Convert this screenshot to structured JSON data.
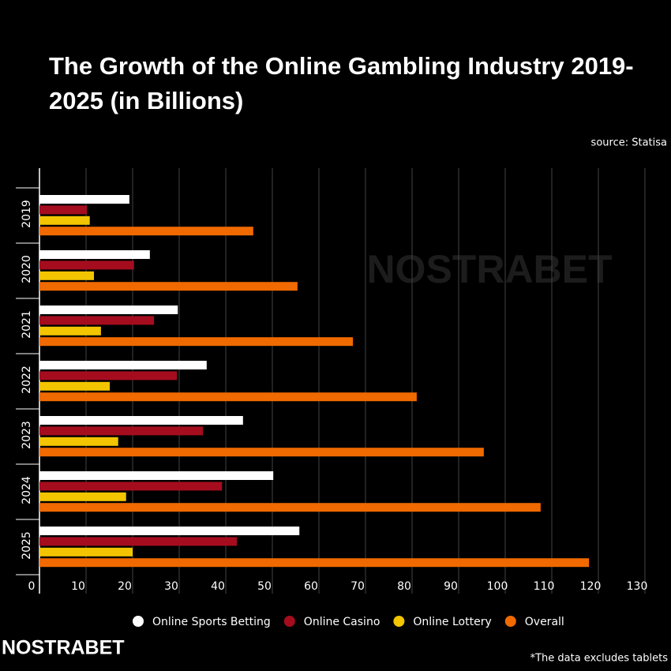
{
  "chart_data": {
    "type": "bar",
    "orientation": "horizontal",
    "title": "The Growth of the Online Gambling Industry 2019-2025 (in Billions)",
    "source": "source: Statisa",
    "footnote": "*The data excludes tablets",
    "logo": "NOSTRABET",
    "watermark": "NOSTRABET",
    "categories": [
      "2019",
      "2020",
      "2021",
      "2022",
      "2023",
      "2024",
      "2025"
    ],
    "series": [
      {
        "name": "Online Sports Betting",
        "color": "#ffffff",
        "values": [
          19.3,
          23.7,
          29.7,
          35.9,
          43.7,
          50.2,
          55.8
        ]
      },
      {
        "name": "Online Casino",
        "color": "#a50d1e",
        "values": [
          10.2,
          20.3,
          24.6,
          29.5,
          35.1,
          39.2,
          42.4
        ]
      },
      {
        "name": "Online Lottery",
        "color": "#f2c500",
        "values": [
          10.8,
          11.7,
          13.2,
          15.1,
          16.9,
          18.6,
          20.0
        ]
      },
      {
        "name": "Overall",
        "color": "#f06a00",
        "values": [
          45.9,
          55.4,
          67.3,
          81.0,
          95.4,
          107.6,
          118.0
        ]
      }
    ],
    "xlim": [
      0,
      130
    ],
    "xticks": [
      0,
      10,
      20,
      30,
      40,
      50,
      60,
      70,
      80,
      90,
      100,
      110,
      120,
      130
    ],
    "grid": true
  }
}
